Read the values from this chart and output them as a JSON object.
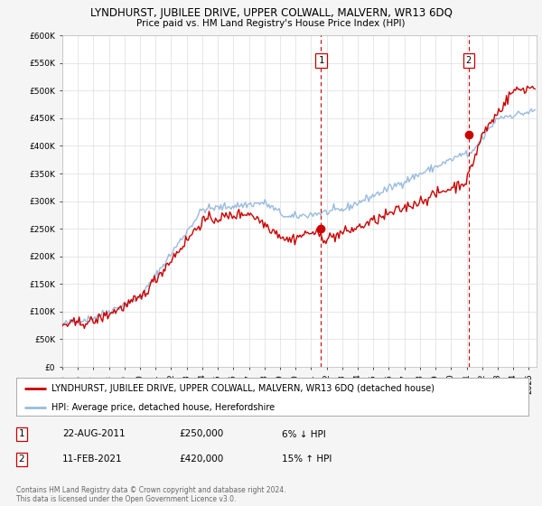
{
  "title": "LYNDHURST, JUBILEE DRIVE, UPPER COLWALL, MALVERN, WR13 6DQ",
  "subtitle": "Price paid vs. HM Land Registry's House Price Index (HPI)",
  "red_label": "LYNDHURST, JUBILEE DRIVE, UPPER COLWALL, MALVERN, WR13 6DQ (detached house)",
  "blue_label": "HPI: Average price, detached house, Herefordshire",
  "annotation1_date": "22-AUG-2011",
  "annotation1_price": "£250,000",
  "annotation1_hpi": "6% ↓ HPI",
  "annotation2_date": "11-FEB-2021",
  "annotation2_price": "£420,000",
  "annotation2_hpi": "15% ↑ HPI",
  "footnote1": "Contains HM Land Registry data © Crown copyright and database right 2024.",
  "footnote2": "This data is licensed under the Open Government Licence v3.0.",
  "marker1_x": 2011.644,
  "marker1_y": 250000,
  "marker2_x": 2021.12,
  "marker2_y": 420000,
  "vline1_x": 2011.644,
  "vline2_x": 2021.12,
  "ylim": [
    0,
    600000
  ],
  "xlim": [
    1995,
    2025.5
  ],
  "yticks": [
    0,
    50000,
    100000,
    150000,
    200000,
    250000,
    300000,
    350000,
    400000,
    450000,
    500000,
    550000,
    600000
  ],
  "ytick_labels": [
    "£0",
    "£50K",
    "£100K",
    "£150K",
    "£200K",
    "£250K",
    "£300K",
    "£350K",
    "£400K",
    "£450K",
    "£500K",
    "£550K",
    "£600K"
  ],
  "xticks": [
    1995,
    1996,
    1997,
    1998,
    1999,
    2000,
    2001,
    2002,
    2003,
    2004,
    2005,
    2006,
    2007,
    2008,
    2009,
    2010,
    2011,
    2012,
    2013,
    2014,
    2015,
    2016,
    2017,
    2018,
    2019,
    2020,
    2021,
    2022,
    2023,
    2024,
    2025
  ],
  "red_color": "#cc0000",
  "blue_color": "#99bbdd",
  "marker_color": "#cc0000",
  "vline_color": "#cc0000",
  "grid_color": "#dddddd",
  "bg_color": "#f5f5f5",
  "plot_bg_color": "#ffffff",
  "title_fontsize": 8.5,
  "subtitle_fontsize": 7.5,
  "tick_fontsize": 6.5,
  "legend_fontsize": 7.0,
  "ann_fontsize": 7.5,
  "footnote_fontsize": 5.5
}
